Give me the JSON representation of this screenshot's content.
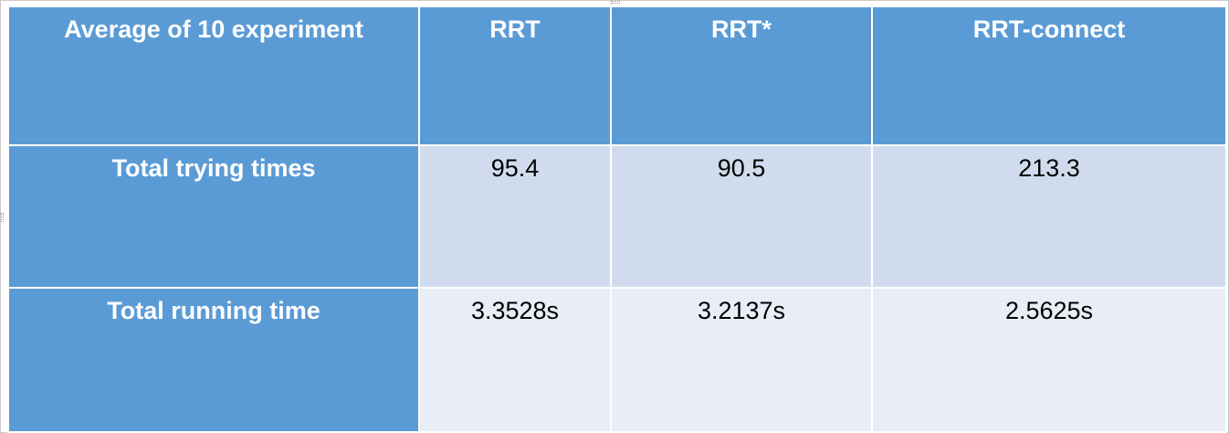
{
  "chart_data": {
    "type": "table",
    "columns": [
      "Average of 10 experiment",
      "RRT",
      "RRT*",
      "RRT-connect"
    ],
    "rows": [
      {
        "label": "Total trying times",
        "values": [
          "95.4",
          "90.5",
          "213.3"
        ]
      },
      {
        "label": "Total running time",
        "values": [
          "3.3528s",
          "3.2137s",
          "2.5625s"
        ]
      }
    ]
  },
  "colors": {
    "header": "#5b9bd5",
    "row_1": "#d0dcee",
    "row_2": "#e8edf6"
  }
}
